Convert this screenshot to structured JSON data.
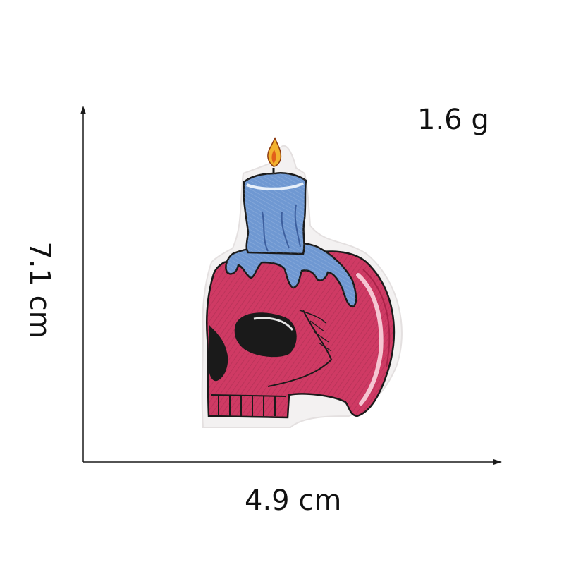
{
  "measurements": {
    "weight": "1.6 g",
    "height": "7.1 cm",
    "width": "4.9 cm"
  },
  "colors": {
    "skull": "#cf3a64",
    "skull_shadow": "#a82248",
    "candle": "#6f98d2",
    "candle_shadow": "#3d5f9e",
    "flame": "#f2b22e",
    "flame_core": "#e25f1a",
    "outline": "#1a1a1a",
    "axis": "#1a1a1a"
  },
  "patch": {
    "icon": "skull-candle-patch"
  }
}
